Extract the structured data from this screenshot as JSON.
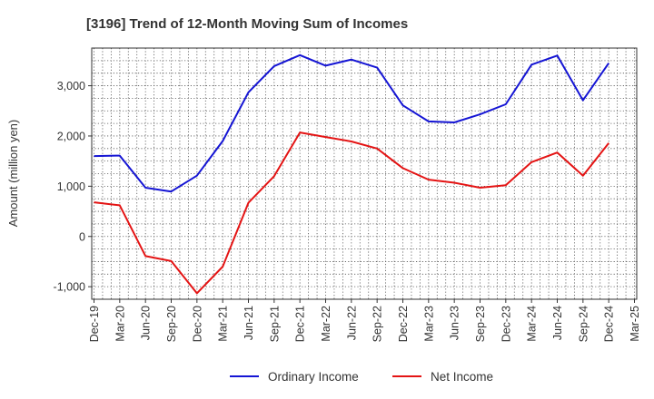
{
  "chart_data": {
    "type": "line",
    "title": "[3196]  Trend of 12-Month Moving Sum of Incomes",
    "xlabel": "",
    "ylabel": "Amount (million yen)",
    "categories": [
      "Dec-19",
      "Mar-20",
      "Jun-20",
      "Sep-20",
      "Dec-20",
      "Mar-21",
      "Jun-21",
      "Sep-21",
      "Dec-21",
      "Mar-22",
      "Jun-22",
      "Sep-22",
      "Dec-22",
      "Mar-23",
      "Jun-23",
      "Sep-23",
      "Dec-23",
      "Mar-24",
      "Jun-24",
      "Sep-24",
      "Dec-24",
      "Mar-25"
    ],
    "y_ticks": [
      -1000,
      0,
      1000,
      2000,
      3000
    ],
    "y_tick_labels": [
      "-1,000",
      "0",
      "1,000",
      "2,000",
      "3,000"
    ],
    "ylim": [
      -1250,
      3750
    ],
    "grid": true,
    "legend_position": "bottom",
    "series": [
      {
        "name": "Ordinary Income",
        "color": "#1515d4",
        "values": [
          1600,
          1610,
          970,
          895,
          1210,
          1900,
          2870,
          3390,
          3610,
          3400,
          3520,
          3360,
          2610,
          2290,
          2270,
          2430,
          2630,
          3420,
          3600,
          2710,
          3450,
          null
        ]
      },
      {
        "name": "Net Income",
        "color": "#e41414",
        "values": [
          680,
          620,
          -390,
          -490,
          -1130,
          -600,
          670,
          1200,
          2070,
          1980,
          1890,
          1750,
          1360,
          1130,
          1070,
          970,
          1020,
          1480,
          1670,
          1210,
          1860,
          null
        ]
      }
    ]
  }
}
